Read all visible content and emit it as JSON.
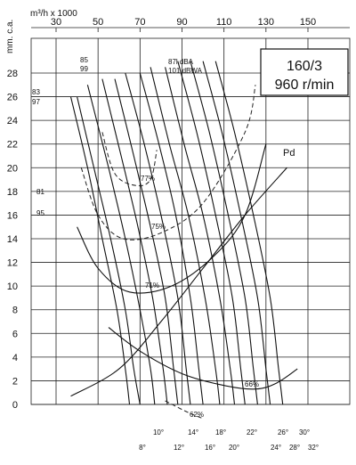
{
  "chart_data": {
    "type": "line",
    "xlabel": "m³/h x 1000",
    "ylabel": "mm. c.a.",
    "x_ticks": [
      "30",
      "50",
      "70",
      "90",
      "110",
      "130",
      "150"
    ],
    "y_ticks": [
      "28",
      "26",
      "24",
      "22",
      "20",
      "18",
      "16",
      "14",
      "12",
      "10",
      "8",
      "6",
      "4",
      "2",
      "0"
    ],
    "xlim": [
      25,
      165
    ],
    "ylim": [
      0,
      29
    ],
    "model": "160/3",
    "speed": "960 r/min",
    "pressure_curve_label": "Pd",
    "efficiency_labels": [
      "77%",
      "75%",
      "71%",
      "66%",
      "62%"
    ],
    "noise_labels": [
      {
        "dba": "83",
        "dbwa": "97"
      },
      {
        "dba": "85",
        "dbwa": "99"
      },
      {
        "dba": "87l dBA",
        "dbwa": "101 dBWA"
      },
      {
        "dba": "81",
        "dbwa": "95"
      }
    ],
    "blade_angles": [
      "8°",
      "10°",
      "12°",
      "14°",
      "16°",
      "18°",
      "20°",
      "22°",
      "24°",
      "26°",
      "28°",
      "30°",
      "32°"
    ],
    "series": [
      {
        "name": "Pd",
        "points": [
          [
            37,
            0.7
          ],
          [
            60,
            3
          ],
          [
            80,
            7
          ],
          [
            100,
            11.5
          ],
          [
            120,
            16
          ],
          [
            140,
            20
          ]
        ]
      },
      {
        "name": "8°",
        "points": [
          [
            37,
            26
          ],
          [
            45,
            20
          ],
          [
            52,
            14
          ],
          [
            59,
            8
          ],
          [
            63,
            3
          ],
          [
            65,
            0
          ]
        ]
      },
      {
        "name": "10°",
        "points": [
          [
            40,
            26
          ],
          [
            48,
            20
          ],
          [
            56,
            14
          ],
          [
            63,
            8
          ],
          [
            67,
            3
          ],
          [
            70,
            0
          ]
        ]
      },
      {
        "name": "12°",
        "points": [
          [
            45,
            27
          ],
          [
            55,
            20
          ],
          [
            63,
            14
          ],
          [
            70,
            8
          ],
          [
            75,
            3
          ],
          [
            77,
            0
          ]
        ]
      },
      {
        "name": "14°",
        "points": [
          [
            52,
            27.5
          ],
          [
            61,
            21
          ],
          [
            69,
            15
          ],
          [
            76,
            9
          ],
          [
            81,
            3
          ],
          [
            83,
            0
          ]
        ]
      },
      {
        "name": "16°",
        "points": [
          [
            58,
            27.5
          ],
          [
            67,
            21
          ],
          [
            75,
            15
          ],
          [
            82,
            9
          ],
          [
            86,
            3
          ],
          [
            88,
            0
          ]
        ]
      },
      {
        "name": "18°",
        "points": [
          [
            63,
            28
          ],
          [
            72,
            22
          ],
          [
            80,
            16
          ],
          [
            88,
            9
          ],
          [
            92,
            3
          ],
          [
            94,
            0
          ]
        ]
      },
      {
        "name": "20°",
        "points": [
          [
            70,
            28
          ],
          [
            79,
            22
          ],
          [
            87,
            16
          ],
          [
            94,
            9
          ],
          [
            98,
            3
          ],
          [
            100,
            0
          ]
        ]
      },
      {
        "name": "22°",
        "points": [
          [
            75,
            28.5
          ],
          [
            84,
            22
          ],
          [
            93,
            16
          ],
          [
            101,
            9
          ],
          [
            106,
            3
          ],
          [
            108,
            0
          ]
        ]
      },
      {
        "name": "24°",
        "points": [
          [
            82,
            28.5
          ],
          [
            91,
            22
          ],
          [
            100,
            16
          ],
          [
            108,
            9
          ],
          [
            113,
            3
          ],
          [
            115,
            0
          ]
        ]
      },
      {
        "name": "26°",
        "points": [
          [
            88,
            29
          ],
          [
            97,
            23
          ],
          [
            106,
            16
          ],
          [
            114,
            9
          ],
          [
            118,
            3
          ],
          [
            120,
            0
          ]
        ]
      },
      {
        "name": "28°",
        "points": [
          [
            94,
            29
          ],
          [
            103,
            23
          ],
          [
            112,
            16
          ],
          [
            120,
            9
          ],
          [
            124,
            3
          ],
          [
            126,
            0
          ]
        ]
      },
      {
        "name": "30°",
        "points": [
          [
            100,
            29
          ],
          [
            109,
            23
          ],
          [
            118,
            16
          ],
          [
            126,
            9
          ],
          [
            130,
            3
          ],
          [
            132,
            0
          ]
        ]
      },
      {
        "name": "32°",
        "points": [
          [
            106,
            29
          ],
          [
            115,
            23
          ],
          [
            124,
            16
          ],
          [
            132,
            9
          ],
          [
            136,
            3
          ],
          [
            138,
            0
          ]
        ]
      },
      {
        "name": "77%",
        "points": [
          [
            52,
            23
          ],
          [
            58,
            19.5
          ],
          [
            68,
            18.5
          ],
          [
            75,
            19
          ],
          [
            78,
            21.5
          ]
        ]
      },
      {
        "name": "75%",
        "points": [
          [
            42,
            20
          ],
          [
            50,
            16
          ],
          [
            62,
            14
          ],
          [
            80,
            14.5
          ],
          [
            100,
            17
          ],
          [
            120,
            23
          ],
          [
            125,
            27
          ]
        ]
      },
      {
        "name": "71%",
        "points": [
          [
            40,
            15
          ],
          [
            50,
            11.5
          ],
          [
            65,
            9.5
          ],
          [
            85,
            10
          ],
          [
            105,
            12.5
          ],
          [
            120,
            16
          ],
          [
            130,
            22
          ]
        ]
      },
      {
        "name": "66%",
        "points": [
          [
            55,
            6.5
          ],
          [
            70,
            4.5
          ],
          [
            90,
            2.6
          ],
          [
            110,
            1.6
          ],
          [
            125,
            1.3
          ],
          [
            135,
            1.8
          ],
          [
            145,
            3
          ]
        ]
      },
      {
        "name": "62%",
        "points": [
          [
            82,
            0.3
          ],
          [
            92,
            -0.6
          ],
          [
            100,
            -1.2
          ]
        ]
      }
    ]
  }
}
